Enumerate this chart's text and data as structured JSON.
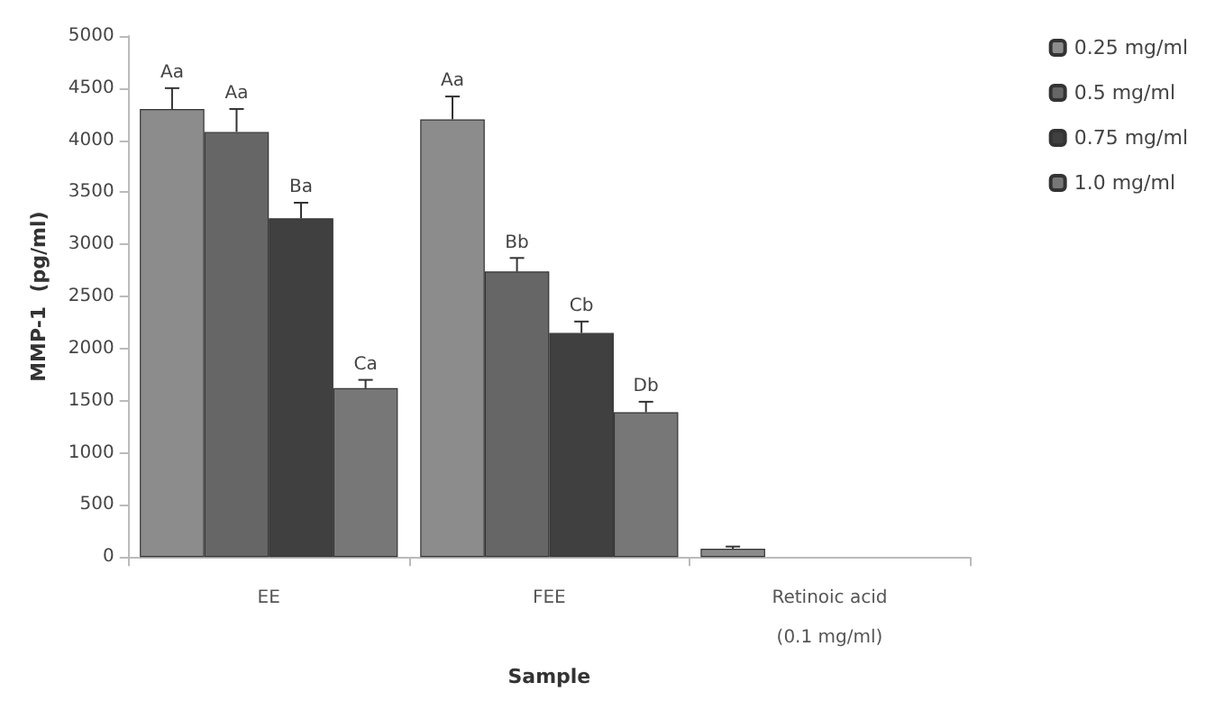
{
  "chart_data": {
    "type": "bar",
    "xlabel": "Sample",
    "ylabel": "MMP-1  (pg/ml)",
    "categories": [
      "EE",
      "FEE",
      "Retinoic acid\n(0.1 mg/ml)"
    ],
    "series": [
      {
        "name": "0.25 mg/ml",
        "color": "#8c8c8c",
        "values": [
          4300,
          4200,
          80
        ],
        "errors": [
          200,
          220,
          20
        ],
        "value_labels": [
          "Aa",
          "Aa",
          null
        ]
      },
      {
        "name": "0.5 mg/ml",
        "color": "#666666",
        "values": [
          4080,
          2740,
          null
        ],
        "errors": [
          220,
          130,
          null
        ],
        "value_labels": [
          "Aa",
          "Bb",
          null
        ]
      },
      {
        "name": "0.75 mg/ml",
        "color": "#404040",
        "values": [
          3250,
          2150,
          null
        ],
        "errors": [
          150,
          110,
          null
        ],
        "value_labels": [
          "Ba",
          "Cb",
          null
        ]
      },
      {
        "name": "1.0 mg/ml",
        "color": "#777777",
        "values": [
          1620,
          1390,
          null
        ],
        "errors": [
          80,
          100,
          null
        ],
        "value_labels": [
          "Ca",
          "Db",
          null
        ]
      }
    ],
    "ylim": [
      0,
      5000
    ],
    "yticks": [
      0,
      500,
      1000,
      1500,
      2000,
      2500,
      3000,
      3500,
      4000,
      4500,
      5000
    ],
    "grid": false,
    "legend": "top right"
  }
}
